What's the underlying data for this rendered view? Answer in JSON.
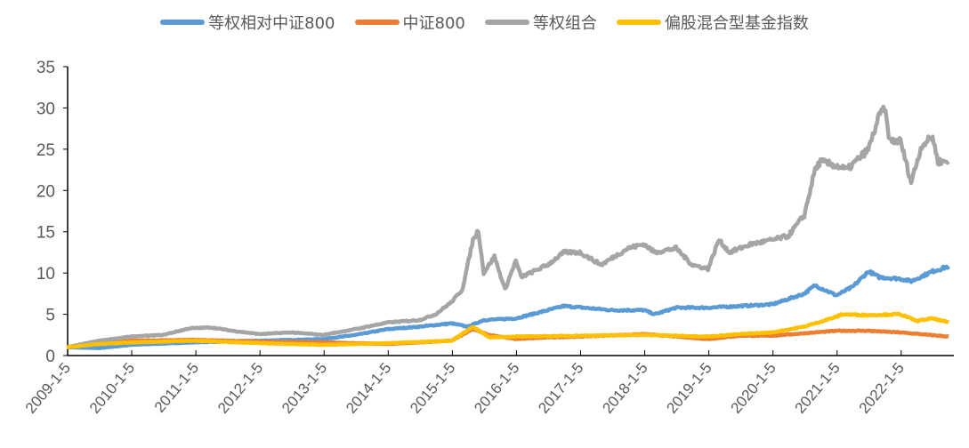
{
  "chart_data": {
    "type": "line",
    "title": "",
    "xlabel": "",
    "ylabel": "",
    "ylim": [
      0,
      35
    ],
    "yticks": [
      "0",
      "5",
      "10",
      "15",
      "20",
      "25",
      "30",
      "35"
    ],
    "xticks": [
      "2009-1-5",
      "2010-1-5",
      "2011-1-5",
      "2012-1-5",
      "2013-1-5",
      "2014-1-5",
      "2015-1-5",
      "2016-1-5",
      "2017-1-5",
      "2018-1-5",
      "2019-1-5",
      "2020-1-5",
      "2021-1-5",
      "2022-1-5"
    ],
    "xlim": [
      "2009-01-05",
      "2022-10-31"
    ],
    "grid": false,
    "legend_position": "top",
    "series": [
      {
        "name": "等权相对中证800",
        "color": "#5B9BD5",
        "points": [
          [
            "2009-01",
            1.0
          ],
          [
            "2009-07",
            0.9
          ],
          [
            "2010-01",
            1.3
          ],
          [
            "2011-01",
            1.6
          ],
          [
            "2012-01",
            1.8
          ],
          [
            "2013-01",
            2.0
          ],
          [
            "2013-07",
            2.5
          ],
          [
            "2014-01",
            3.2
          ],
          [
            "2014-07",
            3.5
          ],
          [
            "2015-01",
            3.9
          ],
          [
            "2015-04",
            3.5
          ],
          [
            "2015-07",
            4.3
          ],
          [
            "2016-01",
            4.5
          ],
          [
            "2016-07",
            5.5
          ],
          [
            "2016-10",
            6.0
          ],
          [
            "2017-07",
            5.5
          ],
          [
            "2018-01",
            5.5
          ],
          [
            "2018-03",
            5.0
          ],
          [
            "2018-07",
            5.8
          ],
          [
            "2019-01",
            5.8
          ],
          [
            "2019-07",
            6.0
          ],
          [
            "2020-01",
            6.2
          ],
          [
            "2020-07",
            7.5
          ],
          [
            "2020-09",
            8.5
          ],
          [
            "2021-01",
            7.3
          ],
          [
            "2021-04",
            8.3
          ],
          [
            "2021-07",
            10.2
          ],
          [
            "2021-09",
            9.5
          ],
          [
            "2022-01",
            9.3
          ],
          [
            "2022-03",
            9.0
          ],
          [
            "2022-07",
            10.2
          ],
          [
            "2022-10",
            10.8
          ]
        ]
      },
      {
        "name": "中证800",
        "color": "#ED7D31",
        "points": [
          [
            "2009-01",
            1.0
          ],
          [
            "2009-07",
            1.6
          ],
          [
            "2010-01",
            1.8
          ],
          [
            "2011-01",
            1.9
          ],
          [
            "2012-01",
            1.7
          ],
          [
            "2013-01",
            1.6
          ],
          [
            "2014-01",
            1.4
          ],
          [
            "2015-01",
            1.8
          ],
          [
            "2015-05",
            3.2
          ],
          [
            "2015-08",
            2.5
          ],
          [
            "2016-01",
            2.0
          ],
          [
            "2016-07",
            2.2
          ],
          [
            "2017-01",
            2.3
          ],
          [
            "2018-01",
            2.6
          ],
          [
            "2019-01",
            2.0
          ],
          [
            "2019-07",
            2.4
          ],
          [
            "2020-01",
            2.4
          ],
          [
            "2020-07",
            2.7
          ],
          [
            "2021-01",
            3.0
          ],
          [
            "2021-07",
            3.0
          ],
          [
            "2022-01",
            2.8
          ],
          [
            "2022-10",
            2.3
          ]
        ]
      },
      {
        "name": "等权组合",
        "color": "#A5A5A5",
        "points": [
          [
            "2009-01",
            1.0
          ],
          [
            "2009-07",
            1.8
          ],
          [
            "2010-01",
            2.3
          ],
          [
            "2010-07",
            2.5
          ],
          [
            "2010-12",
            3.3
          ],
          [
            "2011-04",
            3.4
          ],
          [
            "2011-08",
            3.0
          ],
          [
            "2012-01",
            2.6
          ],
          [
            "2012-07",
            2.8
          ],
          [
            "2013-01",
            2.5
          ],
          [
            "2013-07",
            3.2
          ],
          [
            "2014-01",
            4.0
          ],
          [
            "2014-07",
            4.3
          ],
          [
            "2014-10",
            5.0
          ],
          [
            "2015-01",
            6.5
          ],
          [
            "2015-03",
            8.0
          ],
          [
            "2015-05",
            14.0
          ],
          [
            "2015-06",
            15.2
          ],
          [
            "2015-07",
            10.0
          ],
          [
            "2015-09",
            12.0
          ],
          [
            "2015-11",
            8.0
          ],
          [
            "2016-01",
            11.5
          ],
          [
            "2016-02",
            9.5
          ],
          [
            "2016-07",
            11.0
          ],
          [
            "2016-10",
            12.5
          ],
          [
            "2017-01",
            12.5
          ],
          [
            "2017-05",
            11.0
          ],
          [
            "2017-10",
            13.0
          ],
          [
            "2018-01",
            13.5
          ],
          [
            "2018-03",
            12.5
          ],
          [
            "2018-07",
            13.0
          ],
          [
            "2018-10",
            11.0
          ],
          [
            "2019-01",
            10.5
          ],
          [
            "2019-03",
            14.0
          ],
          [
            "2019-05",
            12.5
          ],
          [
            "2019-09",
            13.5
          ],
          [
            "2020-01",
            14.0
          ],
          [
            "2020-04",
            14.5
          ],
          [
            "2020-07",
            17.0
          ],
          [
            "2020-09",
            22.5
          ],
          [
            "2020-10",
            23.5
          ],
          [
            "2021-01",
            23.0
          ],
          [
            "2021-03",
            22.5
          ],
          [
            "2021-07",
            25.0
          ],
          [
            "2021-09",
            29.0
          ],
          [
            "2021-10",
            30.0
          ],
          [
            "2021-11",
            26.0
          ],
          [
            "2022-01",
            26.0
          ],
          [
            "2022-03",
            21.0
          ],
          [
            "2022-05",
            25.5
          ],
          [
            "2022-07",
            26.5
          ],
          [
            "2022-08",
            23.5
          ],
          [
            "2022-10",
            23.5
          ]
        ]
      },
      {
        "name": "偏股混合型基金指数",
        "color": "#FFC000",
        "points": [
          [
            "2009-01",
            1.0
          ],
          [
            "2009-07",
            1.4
          ],
          [
            "2010-01",
            1.6
          ],
          [
            "2011-01",
            1.8
          ],
          [
            "2012-01",
            1.5
          ],
          [
            "2013-01",
            1.3
          ],
          [
            "2014-01",
            1.5
          ],
          [
            "2015-01",
            1.8
          ],
          [
            "2015-05",
            3.5
          ],
          [
            "2015-08",
            2.2
          ],
          [
            "2016-01",
            2.3
          ],
          [
            "2017-01",
            2.4
          ],
          [
            "2018-01",
            2.5
          ],
          [
            "2019-01",
            2.3
          ],
          [
            "2019-07",
            2.6
          ],
          [
            "2020-01",
            2.8
          ],
          [
            "2020-07",
            3.5
          ],
          [
            "2021-01",
            4.7
          ],
          [
            "2021-02",
            5.0
          ],
          [
            "2021-07",
            4.9
          ],
          [
            "2022-01",
            5.0
          ],
          [
            "2022-04",
            4.2
          ],
          [
            "2022-07",
            4.5
          ],
          [
            "2022-10",
            4.0
          ]
        ]
      }
    ]
  }
}
